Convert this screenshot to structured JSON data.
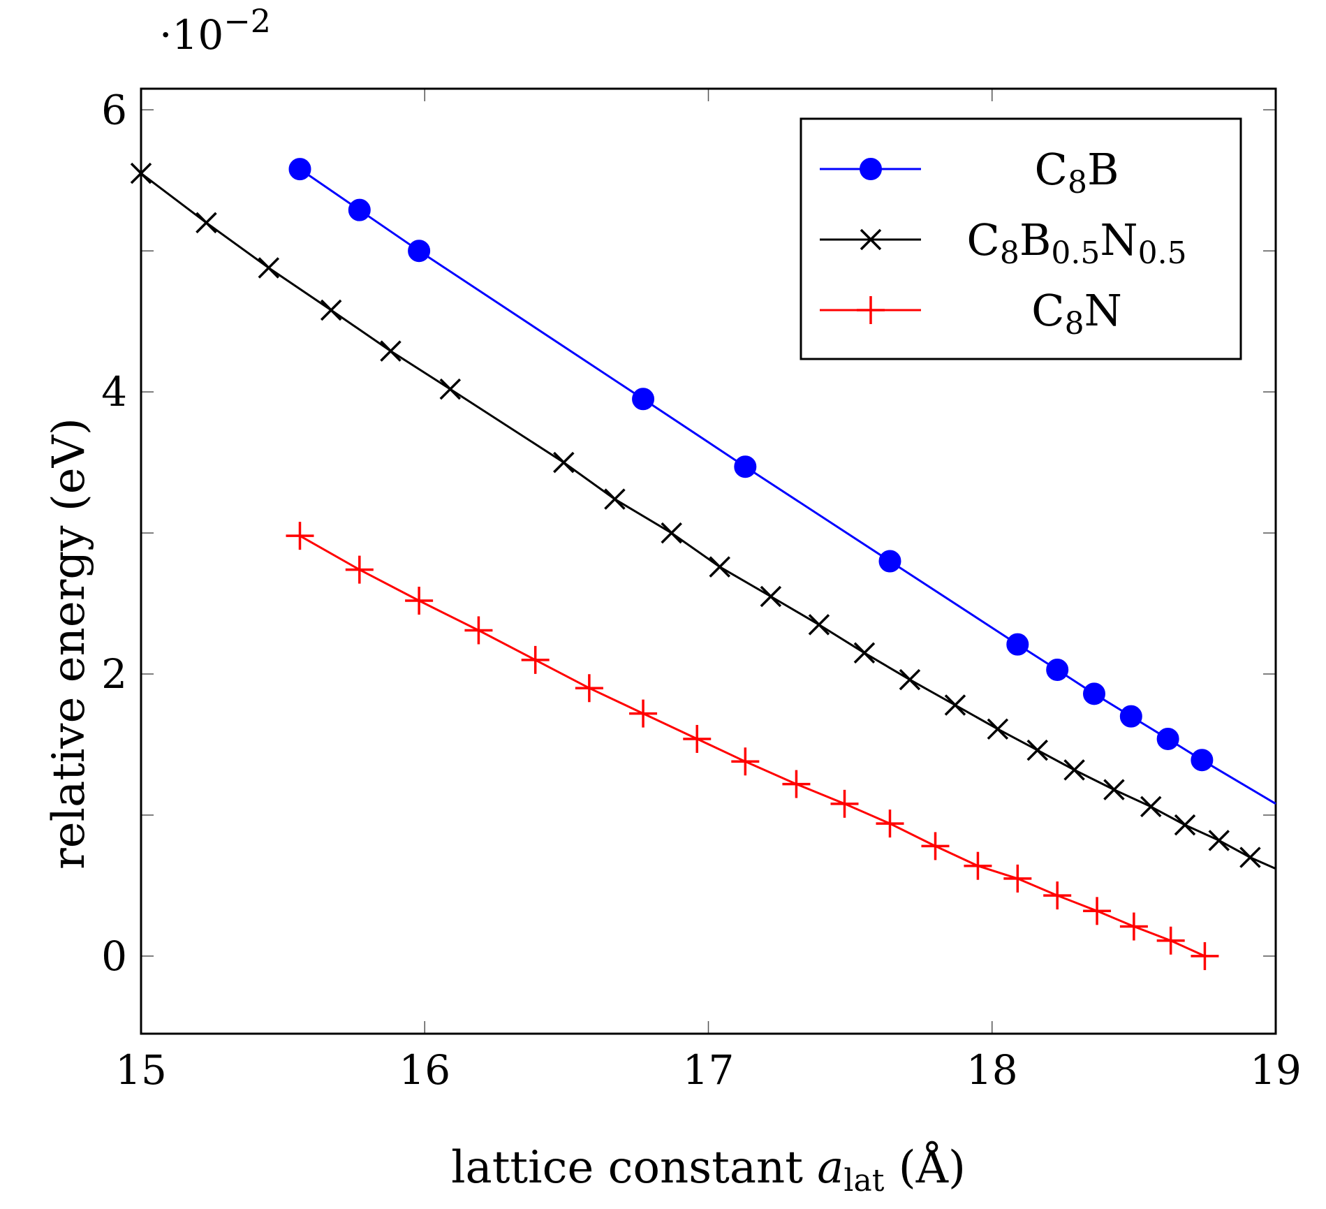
{
  "chart_data": {
    "type": "line",
    "title": "",
    "xlabel": {
      "prefix": "lattice constant ",
      "var": "a",
      "sub": "lat",
      "suffix": " (Å)"
    },
    "ylabel": "relative energy (eV)",
    "y_multiplier": "·10",
    "y_multiplier_exp": "−2",
    "xlim": [
      15,
      19
    ],
    "ylim": [
      -0.55,
      6.15
    ],
    "xticks": [
      15,
      16,
      17,
      18,
      19
    ],
    "yticks": [
      0,
      2,
      4,
      6
    ],
    "ytick_labels": [
      "0",
      "2",
      "4",
      "6"
    ],
    "xtick_labels": [
      "15",
      "16",
      "17",
      "18",
      "19"
    ],
    "grid": false,
    "legend_position": "top-right",
    "series": [
      {
        "name": "C8B",
        "legend": {
          "base": "C",
          "sub1": "8",
          "mid": "B",
          "sub2": "",
          "end": "",
          "sub3": ""
        },
        "color": "#0000ff",
        "marker": "circle",
        "x": [
          15.56,
          15.77,
          15.98,
          16.77,
          17.13,
          17.64,
          18.09,
          18.23,
          18.36,
          18.49,
          18.62,
          18.74
        ],
        "y": [
          5.58,
          5.29,
          5.0,
          3.95,
          3.47,
          2.8,
          2.21,
          2.03,
          1.86,
          1.7,
          1.54,
          1.39
        ],
        "line_extension": {
          "x": 19.0,
          "y": 1.08
        }
      },
      {
        "name": "C8B0.5N0.5",
        "legend": {
          "base": "C",
          "sub1": "8",
          "mid": "B",
          "sub2": "0.5",
          "end": "N",
          "sub3": "0.5"
        },
        "color": "#000000",
        "marker": "x",
        "x": [
          15.0,
          15.23,
          15.45,
          15.67,
          15.88,
          16.09,
          16.49,
          16.67,
          16.87,
          17.04,
          17.22,
          17.39,
          17.55,
          17.71,
          17.87,
          18.02,
          18.16,
          18.29,
          18.43,
          18.56,
          18.68,
          18.8,
          18.91
        ],
        "y": [
          5.55,
          5.2,
          4.88,
          4.58,
          4.29,
          4.02,
          3.5,
          3.24,
          3.0,
          2.76,
          2.55,
          2.35,
          2.15,
          1.96,
          1.78,
          1.61,
          1.46,
          1.32,
          1.18,
          1.06,
          0.93,
          0.82,
          0.7
        ],
        "line_extension": {
          "x": 19.0,
          "y": 0.62
        }
      },
      {
        "name": "C8N",
        "legend": {
          "base": "C",
          "sub1": "8",
          "mid": "N",
          "sub2": "",
          "end": "",
          "sub3": ""
        },
        "color": "#ff0000",
        "marker": "plus",
        "x": [
          15.56,
          15.77,
          15.98,
          16.19,
          16.39,
          16.58,
          16.77,
          16.96,
          17.13,
          17.31,
          17.48,
          17.64,
          17.8,
          17.95,
          18.09,
          18.23,
          18.37,
          18.5,
          18.63,
          18.75
        ],
        "y": [
          2.98,
          2.74,
          2.52,
          2.31,
          2.1,
          1.9,
          1.72,
          1.54,
          1.38,
          1.22,
          1.08,
          0.94,
          0.78,
          0.64,
          0.55,
          0.43,
          0.32,
          0.21,
          0.11,
          0.0
        ],
        "line_extension": null
      }
    ]
  }
}
